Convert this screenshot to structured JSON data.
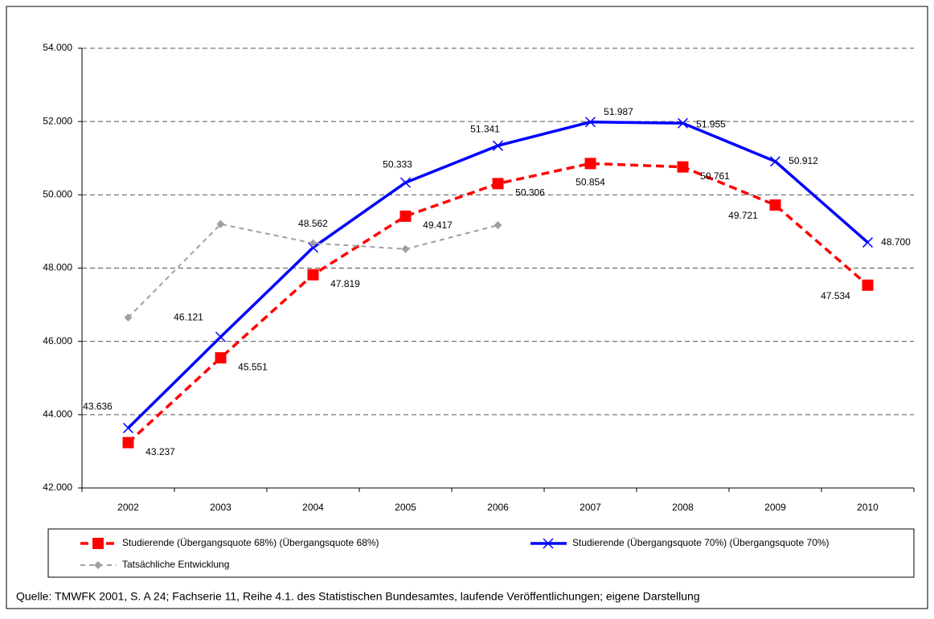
{
  "chart_data": {
    "type": "line",
    "categories": [
      "2002",
      "2003",
      "2004",
      "2005",
      "2006",
      "2007",
      "2008",
      "2009",
      "2010"
    ],
    "series": [
      {
        "name": "Studierende (Übergangsquote 68%) (Übergangsquote 68%)",
        "color": "#ff0000",
        "dash": "dashed",
        "marker": "square",
        "values": [
          43237,
          45551,
          47819,
          49417,
          50306,
          50854,
          50761,
          49721,
          47534
        ],
        "value_labels": [
          "43.237",
          "45.551",
          "47.819",
          "49.417",
          "50.306",
          "50.854",
          "50.761",
          "49.721",
          "47.534"
        ]
      },
      {
        "name": "Studierende (Übergangsquote 70%) (Übergangsquote 70%)",
        "color": "#0000ff",
        "dash": "solid",
        "marker": "x",
        "values": [
          43636,
          46121,
          48562,
          50333,
          51341,
          51987,
          51955,
          50912,
          48700
        ],
        "value_labels": [
          "43.636",
          "46.121",
          "48.562",
          "50.333",
          "51.341",
          "51.987",
          "51.955",
          "50.912",
          "48.700"
        ]
      },
      {
        "name": "Tatsächliche Entwicklung",
        "color": "#a0a0a0",
        "dash": "dashed",
        "marker": "diamond",
        "values": [
          46650,
          49200,
          48680,
          48520,
          49170,
          null,
          null,
          null,
          null
        ]
      }
    ],
    "ylim": [
      42000,
      54000
    ],
    "yticks": [
      {
        "value": 42000,
        "label": "42.000"
      },
      {
        "value": 44000,
        "label": "44.000"
      },
      {
        "value": 46000,
        "label": "46.000"
      },
      {
        "value": 48000,
        "label": "48.000"
      },
      {
        "value": 50000,
        "label": "50.000"
      },
      {
        "value": 52000,
        "label": "52.000"
      },
      {
        "value": 54000,
        "label": "54.000"
      }
    ],
    "grid": true,
    "legend": "bottom",
    "source": "Quelle: TMWFK 2001, S. A 24; Fachserie 11, Reihe 4.1. des Statistischen Bundesamtes, laufende Veröffentlichungen; eigene Darstellung"
  }
}
